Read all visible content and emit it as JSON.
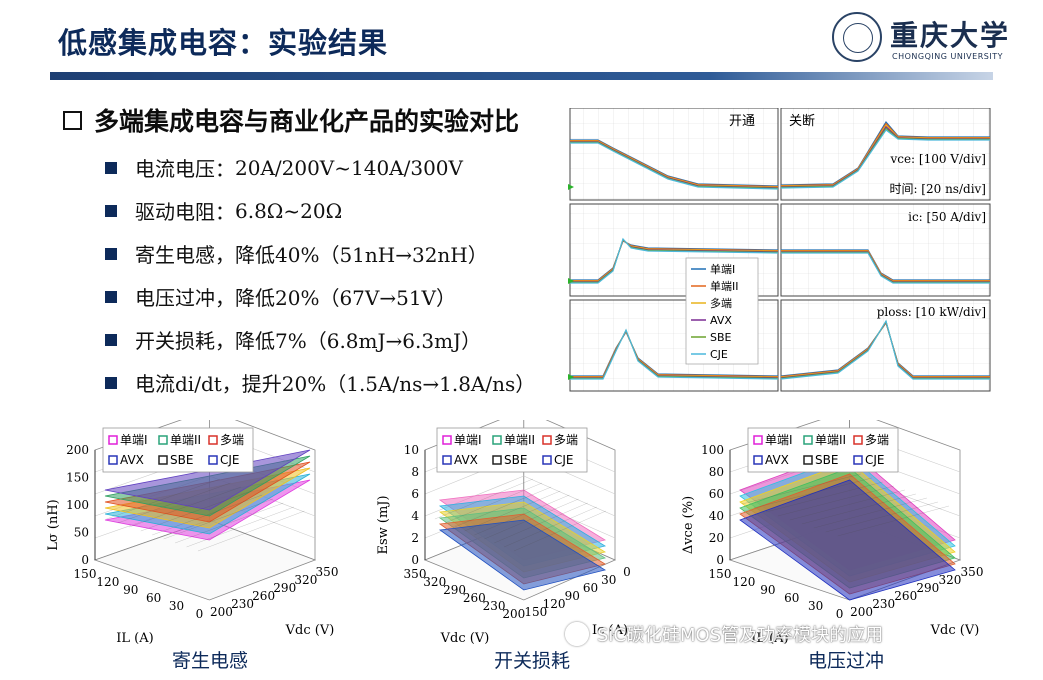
{
  "title": "低感集成电容：实验结果",
  "logo": {
    "cn": "重庆大学",
    "en": "CHONGQING UNIVERSITY"
  },
  "section_heading": "多端集成电容与商业化产品的实验对比",
  "bullets": [
    {
      "label": "电流电压：",
      "value": "20A/200V~140A/300V"
    },
    {
      "label": "驱动电阻：",
      "value": "6.8Ω~20Ω"
    },
    {
      "label": "寄生电感，降低",
      "value": "40%（51nH→32nH）"
    },
    {
      "label": "电压过冲，降低",
      "value": "20%（67V→51V）"
    },
    {
      "label": "开关损耗，降低",
      "value": "7%（6.8mJ→6.3mJ）"
    },
    {
      "label": "电流",
      "value": "di/dt，提升20%（1.5A/ns→1.8A/ns）"
    }
  ],
  "waveform": {
    "turn_on": "开通",
    "turn_off": "关断",
    "vce_label": "vce: [100 V/div]",
    "time_label": "时间: [20 ns/div]",
    "ic_label": "ic: [50 A/div]",
    "ploss_label": "ploss: [10 kW/div]",
    "legend": [
      "单端I",
      "单端II",
      "多端",
      "AVX",
      "SBE",
      "CJE"
    ],
    "legend_colors": [
      "#1f6fb5",
      "#e2661c",
      "#e8b21c",
      "#7a2a92",
      "#6aa22e",
      "#4bb8dc"
    ]
  },
  "plots": [
    {
      "caption": "寄生电感",
      "zlabel": "Lσ (nH)",
      "zticks": [
        "200",
        "150",
        "100",
        "50",
        "0"
      ],
      "xlabel": "IL (A)",
      "xticks": [
        "150",
        "120",
        "90",
        "60",
        "30",
        "0"
      ],
      "ylabel": "Vdc (V)",
      "yticks": [
        "200",
        "230",
        "260",
        "290",
        "320",
        "350"
      ],
      "legend": [
        "单端I",
        "单端II",
        "多端",
        "AVX",
        "SBE",
        "CJE"
      ]
    },
    {
      "caption": "开关损耗",
      "zlabel": "Esw (mJ)",
      "zticks": [
        "10",
        "8",
        "6",
        "4",
        "2",
        "0"
      ],
      "xlabel": "Vdc (V)",
      "xticks": [
        "350",
        "320",
        "290",
        "260",
        "230",
        "200"
      ],
      "ylabel": "Ic (A)",
      "yticks": [
        "150",
        "120",
        "90",
        "60",
        "30",
        "0"
      ],
      "legend": [
        "单端I",
        "单端II",
        "多端",
        "AVX",
        "SBE",
        "CJE"
      ]
    },
    {
      "caption": "电压过冲",
      "zlabel": "Δvce (%)",
      "zticks": [
        "100",
        "80",
        "60",
        "40",
        "20",
        "0"
      ],
      "xlabel": "IL (A)",
      "xticks": [
        "150",
        "120",
        "90",
        "60",
        "30",
        "0"
      ],
      "ylabel": "Vdc (V)",
      "yticks": [
        "200",
        "230",
        "260",
        "290",
        "320",
        "350"
      ],
      "legend": [
        "单端I",
        "单端II",
        "多端",
        "AVX",
        "SBE",
        "CJE"
      ]
    }
  ],
  "legend_marker_colors": [
    "#e020d8",
    "#2aa37a",
    "#d8322a",
    "#2a36b8",
    "#222222",
    "#2a36b8"
  ],
  "watermark": "SiC碳化硅MOS管及功率模块的应用"
}
